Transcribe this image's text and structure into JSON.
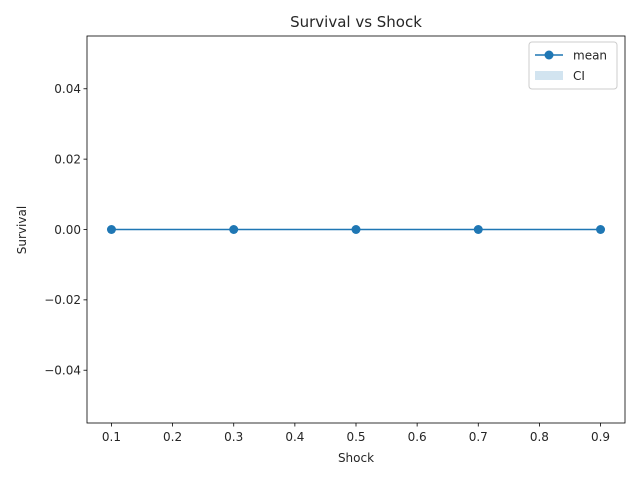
{
  "chart_data": {
    "type": "line",
    "title": "Survival vs Shock",
    "xlabel": "Shock",
    "ylabel": "Survival",
    "xlim": [
      0.06,
      0.94
    ],
    "ylim": [
      -0.055,
      0.055
    ],
    "xticks": [
      0.1,
      0.2,
      0.3,
      0.4,
      0.5,
      0.6,
      0.7,
      0.8,
      0.9
    ],
    "xtick_labels": [
      "0.1",
      "0.2",
      "0.3",
      "0.4",
      "0.5",
      "0.6",
      "0.7",
      "0.8",
      "0.9"
    ],
    "yticks": [
      -0.04,
      -0.02,
      0.0,
      0.02,
      0.04
    ],
    "ytick_labels": [
      "−0.04",
      "−0.02",
      "0.00",
      "0.02",
      "0.04"
    ],
    "grid": false,
    "legend_position": "top-right",
    "series": [
      {
        "name": "mean",
        "x": [
          0.1,
          0.3,
          0.5,
          0.7,
          0.9
        ],
        "y": [
          0,
          0,
          0,
          0,
          0
        ],
        "color": "#1f77b4",
        "marker": "circle"
      }
    ],
    "band": {
      "name": "CI",
      "x": [
        0.1,
        0.3,
        0.5,
        0.7,
        0.9
      ],
      "lower": [
        0,
        0,
        0,
        0,
        0
      ],
      "upper": [
        0,
        0,
        0,
        0,
        0
      ],
      "color": "#1f77b4",
      "opacity": 0.2
    }
  }
}
